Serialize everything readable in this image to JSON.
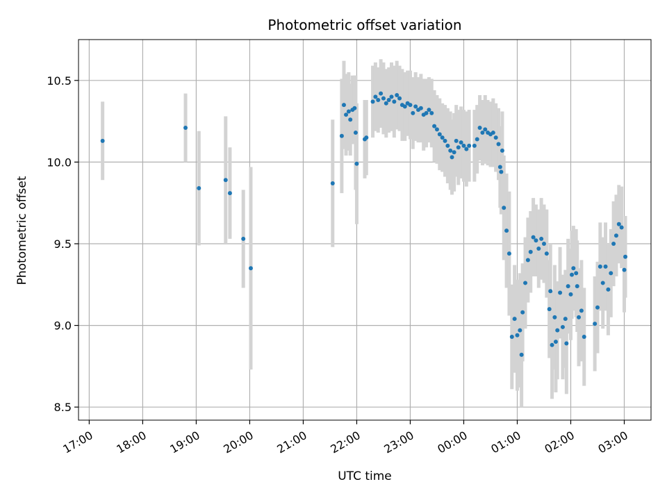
{
  "chart_data": {
    "type": "scatter",
    "title": "Photometric offset variation",
    "xlabel": "UTC time",
    "ylabel": "Photometric offset",
    "x_unit": "hours since 17:00 UTC",
    "xlim": [
      -0.2,
      10.5
    ],
    "ylim": [
      8.42,
      10.75
    ],
    "x_ticks": [
      {
        "x": 0,
        "label": "17:00"
      },
      {
        "x": 1,
        "label": "18:00"
      },
      {
        "x": 2,
        "label": "19:00"
      },
      {
        "x": 3,
        "label": "20:00"
      },
      {
        "x": 4,
        "label": "21:00"
      },
      {
        "x": 5,
        "label": "22:00"
      },
      {
        "x": 6,
        "label": "23:00"
      },
      {
        "x": 7,
        "label": "00:00"
      },
      {
        "x": 8,
        "label": "01:00"
      },
      {
        "x": 9,
        "label": "02:00"
      },
      {
        "x": 10,
        "label": "03:00"
      }
    ],
    "y_ticks": [
      {
        "y": 8.5,
        "label": "8.5"
      },
      {
        "y": 9.0,
        "label": "9.0"
      },
      {
        "y": 9.5,
        "label": "9.5"
      },
      {
        "y": 10.0,
        "label": "10.0"
      },
      {
        "y": 10.5,
        "label": "10.5"
      }
    ],
    "grid": true,
    "colors": {
      "point": "#1f77b4",
      "errorbar": "#d3d3d3",
      "grid": "#b0b0b0"
    },
    "series": [
      {
        "points": [
          [
            0.25,
            10.13,
            0.24
          ],
          [
            1.8,
            10.21,
            0.21
          ],
          [
            2.05,
            9.84,
            0.35
          ],
          [
            2.55,
            9.89,
            0.39
          ],
          [
            2.63,
            9.81,
            0.28
          ],
          [
            2.88,
            9.53,
            0.3
          ],
          [
            3.02,
            9.35,
            0.62
          ],
          [
            4.55,
            9.87,
            0.39
          ],
          [
            4.72,
            10.16,
            0.35
          ],
          [
            4.76,
            10.35,
            0.27
          ],
          [
            4.8,
            10.29,
            0.25
          ],
          [
            4.85,
            10.31,
            0.24
          ],
          [
            4.88,
            10.26,
            0.22
          ],
          [
            4.92,
            10.32,
            0.21
          ],
          [
            4.96,
            10.33,
            0.2
          ],
          [
            4.98,
            10.18,
            0.35
          ],
          [
            5.0,
            9.99,
            0.37
          ],
          [
            5.15,
            10.14,
            0.24
          ],
          [
            5.18,
            10.15,
            0.23
          ],
          [
            5.3,
            10.37,
            0.22
          ],
          [
            5.35,
            10.4,
            0.21
          ],
          [
            5.4,
            10.38,
            0.2
          ],
          [
            5.45,
            10.42,
            0.21
          ],
          [
            5.5,
            10.39,
            0.22
          ],
          [
            5.55,
            10.36,
            0.21
          ],
          [
            5.6,
            10.38,
            0.2
          ],
          [
            5.65,
            10.4,
            0.21
          ],
          [
            5.7,
            10.37,
            0.22
          ],
          [
            5.75,
            10.41,
            0.21
          ],
          [
            5.8,
            10.39,
            0.2
          ],
          [
            5.85,
            10.35,
            0.22
          ],
          [
            5.9,
            10.34,
            0.21
          ],
          [
            5.95,
            10.36,
            0.2
          ],
          [
            6.0,
            10.35,
            0.21
          ],
          [
            6.05,
            10.3,
            0.22
          ],
          [
            6.1,
            10.34,
            0.21
          ],
          [
            6.15,
            10.32,
            0.2
          ],
          [
            6.2,
            10.33,
            0.21
          ],
          [
            6.25,
            10.29,
            0.22
          ],
          [
            6.3,
            10.3,
            0.21
          ],
          [
            6.35,
            10.32,
            0.2
          ],
          [
            6.4,
            10.3,
            0.21
          ],
          [
            6.45,
            10.22,
            0.22
          ],
          [
            6.5,
            10.2,
            0.21
          ],
          [
            6.55,
            10.17,
            0.22
          ],
          [
            6.6,
            10.15,
            0.21
          ],
          [
            6.65,
            10.13,
            0.22
          ],
          [
            6.7,
            10.1,
            0.23
          ],
          [
            6.75,
            10.07,
            0.24
          ],
          [
            6.78,
            10.03,
            0.23
          ],
          [
            6.82,
            10.06,
            0.24
          ],
          [
            6.86,
            10.13,
            0.22
          ],
          [
            6.9,
            10.09,
            0.23
          ],
          [
            6.95,
            10.12,
            0.22
          ],
          [
            7.0,
            10.1,
            0.22
          ],
          [
            7.05,
            10.08,
            0.23
          ],
          [
            7.1,
            10.1,
            0.22
          ],
          [
            7.2,
            10.1,
            0.22
          ],
          [
            7.25,
            10.14,
            0.21
          ],
          [
            7.3,
            10.21,
            0.2
          ],
          [
            7.35,
            10.18,
            0.2
          ],
          [
            7.4,
            10.2,
            0.21
          ],
          [
            7.45,
            10.18,
            0.2
          ],
          [
            7.5,
            10.17,
            0.2
          ],
          [
            7.55,
            10.18,
            0.21
          ],
          [
            7.6,
            10.15,
            0.21
          ],
          [
            7.65,
            10.11,
            0.22
          ],
          [
            7.68,
            9.97,
            0.25
          ],
          [
            7.7,
            9.94,
            0.26
          ],
          [
            7.72,
            10.07,
            0.24
          ],
          [
            7.75,
            9.72,
            0.32
          ],
          [
            7.8,
            9.58,
            0.35
          ],
          [
            7.85,
            9.44,
            0.38
          ],
          [
            7.9,
            8.93,
            0.32
          ],
          [
            7.95,
            9.04,
            0.33
          ],
          [
            8.0,
            8.94,
            0.34
          ],
          [
            8.05,
            8.97,
            0.35
          ],
          [
            8.08,
            8.82,
            0.32
          ],
          [
            8.1,
            9.08,
            0.3
          ],
          [
            8.15,
            9.26,
            0.28
          ],
          [
            8.2,
            9.4,
            0.26
          ],
          [
            8.25,
            9.45,
            0.25
          ],
          [
            8.3,
            9.54,
            0.24
          ],
          [
            8.35,
            9.52,
            0.22
          ],
          [
            8.4,
            9.47,
            0.24
          ],
          [
            8.45,
            9.53,
            0.25
          ],
          [
            8.5,
            9.5,
            0.24
          ],
          [
            8.55,
            9.44,
            0.27
          ],
          [
            8.6,
            9.1,
            0.3
          ],
          [
            8.62,
            9.21,
            0.29
          ],
          [
            8.65,
            8.88,
            0.33
          ],
          [
            8.7,
            9.05,
            0.32
          ],
          [
            8.72,
            8.9,
            0.31
          ],
          [
            8.75,
            8.97,
            0.3
          ],
          [
            8.8,
            9.2,
            0.28
          ],
          [
            8.85,
            8.99,
            0.32
          ],
          [
            8.9,
            9.04,
            0.3
          ],
          [
            8.92,
            8.89,
            0.31
          ],
          [
            8.95,
            9.24,
            0.29
          ],
          [
            9.0,
            9.19,
            0.28
          ],
          [
            9.02,
            9.31,
            0.27
          ],
          [
            9.05,
            9.35,
            0.26
          ],
          [
            9.1,
            9.32,
            0.27
          ],
          [
            9.12,
            9.24,
            0.28
          ],
          [
            9.15,
            9.05,
            0.3
          ],
          [
            9.2,
            9.09,
            0.31
          ],
          [
            9.25,
            8.93,
            0.3
          ],
          [
            9.45,
            9.01,
            0.29
          ],
          [
            9.5,
            9.11,
            0.28
          ],
          [
            9.55,
            9.36,
            0.27
          ],
          [
            9.6,
            9.26,
            0.28
          ],
          [
            9.65,
            9.36,
            0.27
          ],
          [
            9.7,
            9.22,
            0.28
          ],
          [
            9.75,
            9.32,
            0.27
          ],
          [
            9.8,
            9.5,
            0.26
          ],
          [
            9.85,
            9.55,
            0.25
          ],
          [
            9.9,
            9.62,
            0.24
          ],
          [
            9.95,
            9.6,
            0.25
          ],
          [
            10.0,
            9.34,
            0.26
          ],
          [
            10.02,
            9.42,
            0.25
          ]
        ]
      }
    ]
  }
}
